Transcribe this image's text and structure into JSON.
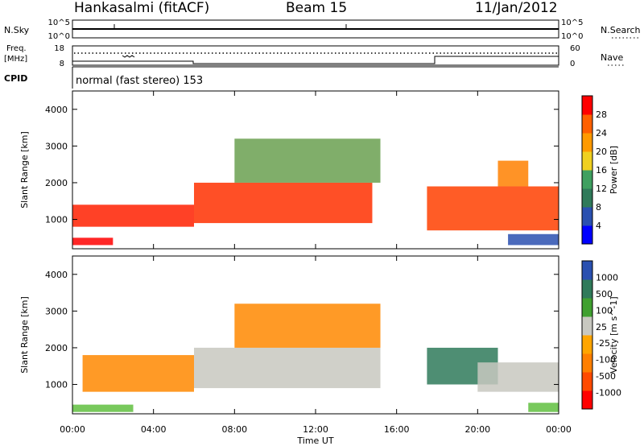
{
  "header": {
    "station": "Hankasalmi (fitACF)",
    "beam": "Beam 15",
    "date": "11/Jan/2012"
  },
  "status_panels": {
    "nsky_label": "N.Sky",
    "nsky_ticks": [
      "10^5",
      "10^0"
    ],
    "nsearch_label": "N.Search",
    "nsearch_ticks": [
      "10^5",
      "10^0"
    ],
    "freq_label": "Freq.",
    "freq_unit": "[MHz]",
    "freq_ticks": [
      "18",
      "8"
    ],
    "nave_label": "Nave",
    "nave_ticks": [
      "60",
      "0"
    ],
    "cpid_label": "CPID",
    "cpid_value": "normal (fast stereo) 153"
  },
  "chart_data": [
    {
      "type": "heatmap",
      "title": "",
      "xlabel": "Time UT",
      "ylabel": "Slant Range [km]",
      "xlim": [
        "00:00",
        "24:00"
      ],
      "ylim": [
        200,
        4500
      ],
      "x_ticks": [
        "00:00",
        "04:00",
        "08:00",
        "12:00",
        "16:00",
        "20:00",
        "00:00"
      ],
      "y_ticks": [
        "1000",
        "2000",
        "3000",
        "4000"
      ],
      "colorbar": {
        "label": "Power [dB]",
        "ticks": [
          "28",
          "24",
          "20",
          "16",
          "12",
          "8",
          "4"
        ],
        "range": [
          0,
          30
        ],
        "colors": [
          "#0000ff",
          "#2a50b0",
          "#2f7a5a",
          "#3fa060",
          "#f0d020",
          "#ff9a00",
          "#ff6000",
          "#ff0000"
        ]
      },
      "echo_regions": [
        {
          "t0": 0.0,
          "t1": 6.0,
          "r0": 800,
          "r1": 1400,
          "level": "high",
          "color": "#ff2000"
        },
        {
          "t0": 6.0,
          "t1": 14.8,
          "r0": 900,
          "r1": 2000,
          "level": "high",
          "color": "#ff3000"
        },
        {
          "t0": 8.0,
          "t1": 15.2,
          "r0": 2000,
          "r1": 3200,
          "level": "medium",
          "color": "#6aa050"
        },
        {
          "t0": 0.0,
          "t1": 2.0,
          "r0": 300,
          "r1": 500,
          "level": "high",
          "color": "#ff0000"
        },
        {
          "t0": 17.5,
          "t1": 24.0,
          "r0": 700,
          "r1": 1900,
          "level": "high",
          "color": "#ff4000"
        },
        {
          "t0": 21.0,
          "t1": 22.5,
          "r0": 1900,
          "r1": 2600,
          "level": "medium",
          "color": "#ff8000"
        },
        {
          "t0": 21.5,
          "t1": 24.0,
          "r0": 300,
          "r1": 600,
          "level": "low",
          "color": "#2a50b0"
        }
      ]
    },
    {
      "type": "heatmap",
      "title": "",
      "xlabel": "Time UT",
      "ylabel": "Slant Range [km]",
      "xlim": [
        "00:00",
        "24:00"
      ],
      "ylim": [
        200,
        4500
      ],
      "x_ticks": [
        "00:00",
        "04:00",
        "08:00",
        "12:00",
        "16:00",
        "20:00",
        "00:00"
      ],
      "y_ticks": [
        "1000",
        "2000",
        "3000",
        "4000"
      ],
      "colorbar": {
        "label": "Velocity [m s^-1]",
        "ticks": [
          "1000",
          "500",
          "100",
          "25",
          "-25",
          "-100",
          "-500",
          "-1000"
        ],
        "range": [
          -1000,
          1000
        ],
        "colors": [
          "#ff0000",
          "#ff4a00",
          "#ff7f00",
          "#ffa500",
          "#c8c8c0",
          "#40a030",
          "#2f7a5a",
          "#2a50b0"
        ]
      },
      "echo_regions": [
        {
          "t0": 0.5,
          "t1": 6.0,
          "r0": 800,
          "r1": 1800,
          "level": "negative",
          "color": "#ff8800"
        },
        {
          "t0": 6.0,
          "t1": 15.2,
          "r0": 900,
          "r1": 2000,
          "level": "near-zero",
          "color": "#c8c8c0"
        },
        {
          "t0": 8.0,
          "t1": 15.2,
          "r0": 2000,
          "r1": 3200,
          "level": "mixed",
          "color": "#ff8800"
        },
        {
          "t0": 17.5,
          "t1": 21.0,
          "r0": 1000,
          "r1": 2000,
          "level": "positive",
          "color": "#2f7a5a"
        },
        {
          "t0": 20.0,
          "t1": 24.0,
          "r0": 800,
          "r1": 1600,
          "level": "near-zero",
          "color": "#c8c8c0"
        },
        {
          "t0": 0.0,
          "t1": 3.0,
          "r0": 250,
          "r1": 450,
          "level": "positive-low",
          "color": "#60c040"
        },
        {
          "t0": 22.5,
          "t1": 24.0,
          "r0": 250,
          "r1": 500,
          "level": "positive-low",
          "color": "#60c040"
        }
      ]
    }
  ]
}
